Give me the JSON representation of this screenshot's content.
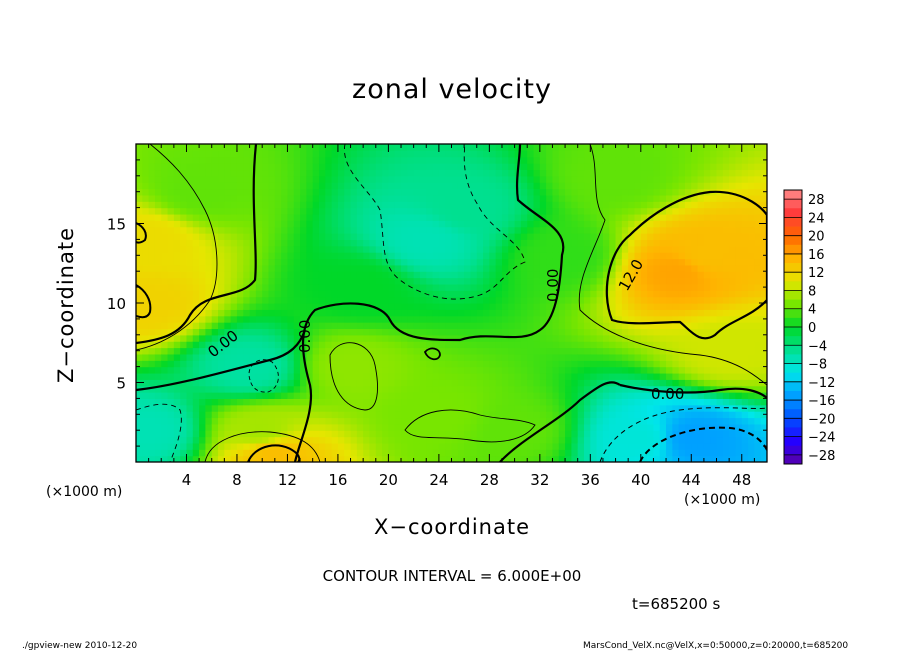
{
  "chart_data": {
    "type": "heatmap",
    "title": "zonal velocity",
    "xlabel": "X−coordinate",
    "ylabel": "Z−coordinate",
    "x_unit_label": "(×1000 m)",
    "xlim": [
      0,
      50
    ],
    "ylim": [
      0,
      20
    ],
    "x_ticks": [
      4,
      8,
      12,
      16,
      20,
      24,
      28,
      32,
      36,
      40,
      44,
      48
    ],
    "y_ticks": [
      5,
      10,
      15
    ],
    "colorbar_ticks": [
      "28",
      "24",
      "20",
      "16",
      "12",
      "8",
      "4",
      "0",
      "−4",
      "−8",
      "−12",
      "−16",
      "−20",
      "−24",
      "−28"
    ],
    "colorbar_range": [
      -30,
      30
    ],
    "contour_interval_text": "CONTOUR INTERVAL = 6.000E+00",
    "contour_labels": [
      "0.00",
      "0.00",
      "0.00",
      "0.00",
      "12.0"
    ],
    "field_features": [
      {
        "x": 43,
        "z": 12,
        "value": 16
      },
      {
        "x": 45,
        "z": 13,
        "value": 14
      },
      {
        "x": 1,
        "z": 14,
        "value": 11
      },
      {
        "x": 1,
        "z": 10,
        "value": 12
      },
      {
        "x": 11,
        "z": 0.5,
        "value": 14
      },
      {
        "x": 10,
        "z": 2,
        "value": 7
      },
      {
        "x": 23,
        "z": 14,
        "value": -7
      },
      {
        "x": 26,
        "z": 16,
        "value": -5
      },
      {
        "x": 34,
        "z": 13,
        "value": 2
      },
      {
        "x": 44,
        "z": 1.5,
        "value": -15
      },
      {
        "x": 40,
        "z": 1.5,
        "value": -9
      },
      {
        "x": 1,
        "z": 2,
        "value": -7
      },
      {
        "x": 9,
        "z": 6,
        "value": -6
      },
      {
        "x": 17,
        "z": 6,
        "value": 6
      },
      {
        "x": 24,
        "z": 3,
        "value": 5
      },
      {
        "x": 30,
        "z": 2,
        "value": 4
      },
      {
        "x": 5,
        "z": 17,
        "value": 4
      },
      {
        "x": 38,
        "z": 18,
        "value": 4
      },
      {
        "x": 47,
        "z": 7,
        "value": 9
      },
      {
        "x": 18,
        "z": 11,
        "value": 0
      }
    ]
  },
  "annotations": {
    "time_label": "t=685200 s",
    "footer_left": "./gpview-new 2010-12-20",
    "footer_right": "MarsCond_VelX.nc@VelX,x=0:50000,z=0:20000,t=685200"
  },
  "colors": {
    "colormap": [
      "#5a00a8",
      "#2400ff",
      "#0050ff",
      "#00a0ff",
      "#00e6ea",
      "#00e090",
      "#00d828",
      "#78e600",
      "#e6e600",
      "#ffb400",
      "#ff6400",
      "#ff3c3c",
      "#ff8c8c"
    ]
  }
}
